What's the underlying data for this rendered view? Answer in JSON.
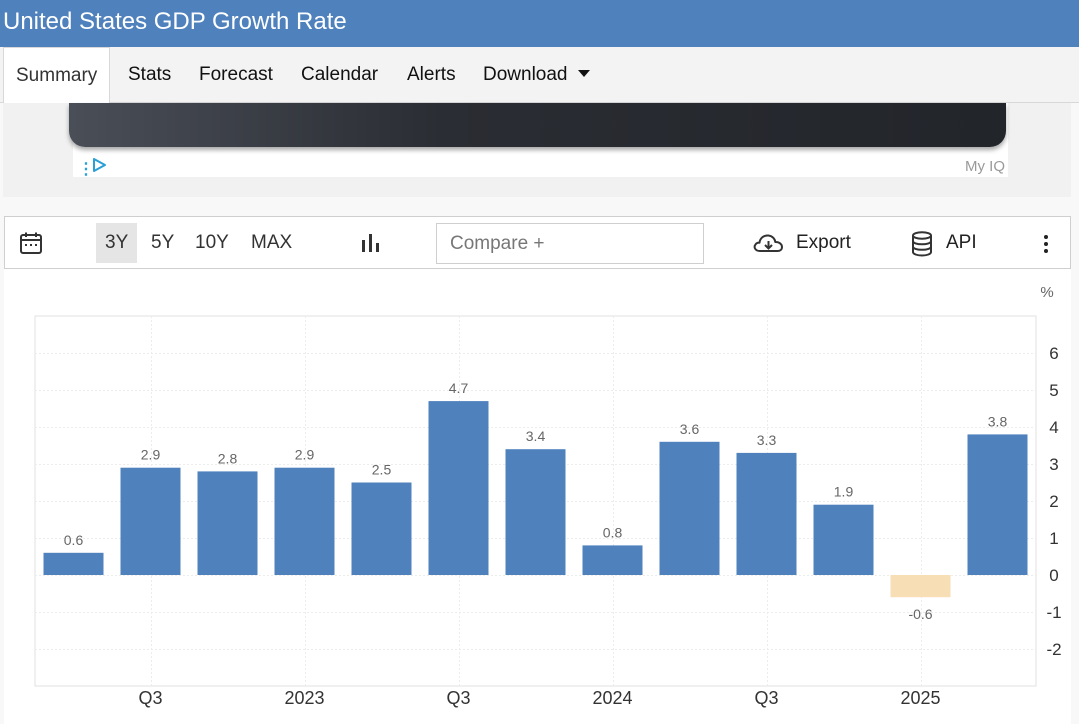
{
  "page": {
    "title": "United States GDP Growth Rate"
  },
  "tabs": [
    {
      "label": "Summary",
      "active": true
    },
    {
      "label": "Stats"
    },
    {
      "label": "Forecast"
    },
    {
      "label": "Calendar"
    },
    {
      "label": "Alerts"
    },
    {
      "label": "Download"
    }
  ],
  "ad": {
    "corner_label": "My IQ"
  },
  "toolbar": {
    "ranges": [
      "3Y",
      "5Y",
      "10Y",
      "MAX"
    ],
    "active_range": "3Y",
    "compare_placeholder": "Compare +",
    "export_label": "Export",
    "api_label": "API"
  },
  "colors": {
    "header": "#4f81bd",
    "bar_positive": "#4f81bd",
    "bar_negative": "#f7deb5"
  },
  "chart_data": {
    "type": "bar",
    "unit_label": "%",
    "ylim": [
      -3,
      7
    ],
    "yticks": [
      6,
      5,
      4,
      3,
      2,
      1,
      0,
      -1,
      -2
    ],
    "grid": true,
    "y_axis_side": "right",
    "values": [
      0.6,
      2.9,
      2.8,
      2.9,
      2.5,
      4.7,
      3.4,
      0.8,
      3.6,
      3.3,
      1.9,
      -0.6,
      3.8
    ],
    "data_labels": [
      "0.6",
      "2.9",
      "2.8",
      "2.9",
      "2.5",
      "4.7",
      "3.4",
      "0.8",
      "3.6",
      "3.3",
      "1.9",
      "-0.6",
      "3.8"
    ],
    "x_ticks": [
      {
        "at_bar": 1.5,
        "label": "Q3"
      },
      {
        "at_bar": 3.5,
        "label": "2023"
      },
      {
        "at_bar": 5.5,
        "label": "Q3"
      },
      {
        "at_bar": 7.5,
        "label": "2024"
      },
      {
        "at_bar": 9.5,
        "label": "Q3"
      },
      {
        "at_bar": 11.5,
        "label": "2025"
      }
    ]
  }
}
